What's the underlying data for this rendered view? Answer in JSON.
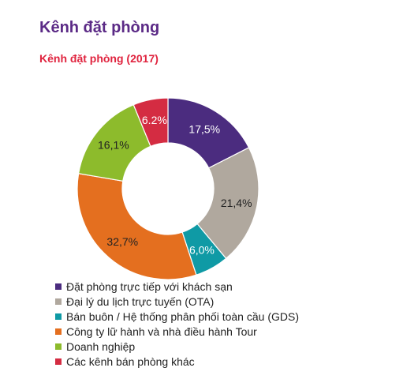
{
  "page": {
    "title": "Kênh đặt phòng"
  },
  "chart_data": {
    "type": "pie",
    "variant": "donut",
    "title": "Kênh đặt phòng (2017)",
    "legend_position": "bottom-left",
    "categories": [
      "Đặt phòng trực tiếp với khách sạn",
      "Đại lý du lịch trực tuyến (OTA)",
      "Bán buôn / Hệ thống phân phối toàn cầu (GDS)",
      "Công ty lữ hành và nhà điều hành Tour",
      "Doanh nghiệp",
      "Các kênh bán phòng khác"
    ],
    "values": [
      17.5,
      21.4,
      6.0,
      32.7,
      16.1,
      6.2
    ],
    "labels": [
      "17,5%",
      "21,4%",
      "6,0%",
      "32,7%",
      "16,1%",
      "6.2%"
    ],
    "colors": [
      "#4b2c7f",
      "#b0a89e",
      "#0f9aa5",
      "#e46f1f",
      "#8dbb2c",
      "#d42c42"
    ]
  }
}
